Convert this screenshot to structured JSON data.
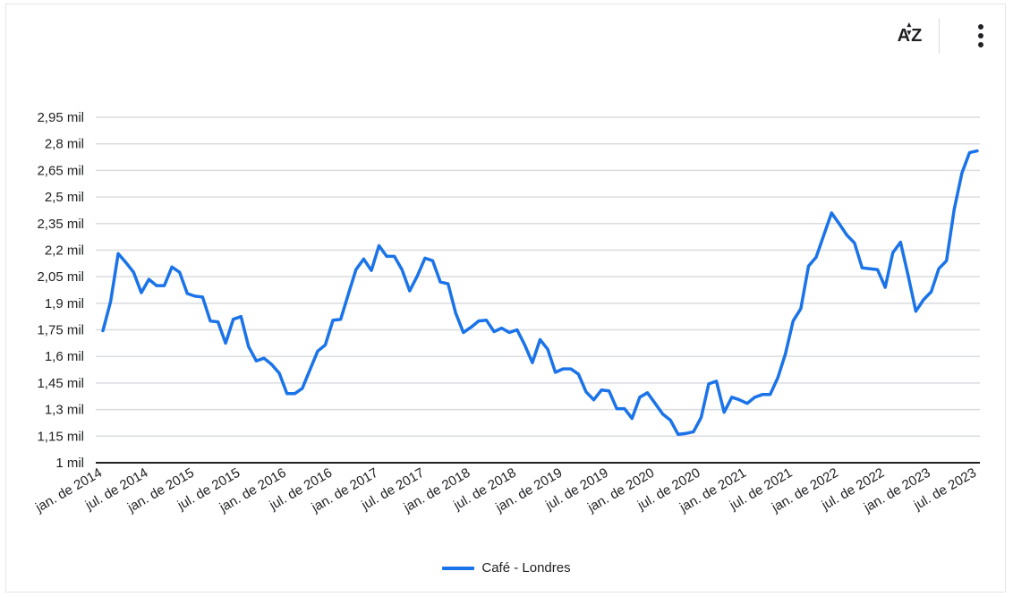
{
  "toolbar": {
    "sort_icon": "sort-az-icon",
    "sort_label": "AZ",
    "menu_icon": "more-vert-icon"
  },
  "colors": {
    "series": "#1a73e8",
    "grid": "#dadce0",
    "axis": "#202124",
    "text": "#202124"
  },
  "chart_data": {
    "type": "line",
    "title": "",
    "xlabel": "",
    "ylabel": "",
    "grid": true,
    "legend_position": "bottom",
    "ylim": [
      1000,
      2950
    ],
    "y_ticks": [
      1000,
      1150,
      1300,
      1450,
      1600,
      1750,
      1900,
      2050,
      2200,
      2350,
      2500,
      2650,
      2800,
      2950
    ],
    "y_tick_labels": [
      "1 mil",
      "1,15 mil",
      "1,3 mil",
      "1,45 mil",
      "1,6 mil",
      "1,75 mil",
      "1,9 mil",
      "2,05 mil",
      "2,2 mil",
      "2,35 mil",
      "2,5 mil",
      "2,65 mil",
      "2,8 mil",
      "2,95 mil"
    ],
    "x_tick_labels": [
      "jan. de 2014",
      "jul. de 2014",
      "jan. de 2015",
      "jul. de 2015",
      "jan. de 2016",
      "jul. de 2016",
      "jan. de 2017",
      "jul. de 2017",
      "jan. de 2018",
      "jul. de 2018",
      "jan. de 2019",
      "jul. de 2019",
      "jan. de 2020",
      "jul. de 2020",
      "jan. de 2021",
      "jul. de 2021",
      "jan. de 2022",
      "jul. de 2022",
      "jan. de 2023",
      "jul. de 2023"
    ],
    "x_start": "2014-01",
    "x_frequency": "monthly",
    "series": [
      {
        "name": "Café - Londres",
        "values": [
          1745,
          1910,
          2180,
          2130,
          2075,
          1960,
          2035,
          2000,
          2000,
          2105,
          2075,
          1955,
          1940,
          1935,
          1800,
          1795,
          1675,
          1810,
          1825,
          1655,
          1575,
          1590,
          1555,
          1505,
          1390,
          1390,
          1420,
          1525,
          1630,
          1665,
          1805,
          1810,
          1950,
          2090,
          2150,
          2085,
          2225,
          2165,
          2165,
          2090,
          1970,
          2055,
          2155,
          2140,
          2020,
          2010,
          1845,
          1735,
          1765,
          1800,
          1805,
          1740,
          1760,
          1735,
          1750,
          1665,
          1565,
          1695,
          1640,
          1510,
          1530,
          1530,
          1500,
          1400,
          1355,
          1410,
          1405,
          1305,
          1305,
          1250,
          1370,
          1395,
          1335,
          1275,
          1240,
          1160,
          1165,
          1175,
          1255,
          1445,
          1460,
          1285,
          1370,
          1355,
          1335,
          1370,
          1385,
          1385,
          1480,
          1615,
          1800,
          1870,
          2110,
          2160,
          2285,
          2410,
          2350,
          2285,
          2240,
          2100,
          2095,
          2090,
          1990,
          2185,
          2245,
          2055,
          1855,
          1920,
          1965,
          2095,
          2140,
          2430,
          2635,
          2750,
          2760
        ]
      }
    ]
  }
}
